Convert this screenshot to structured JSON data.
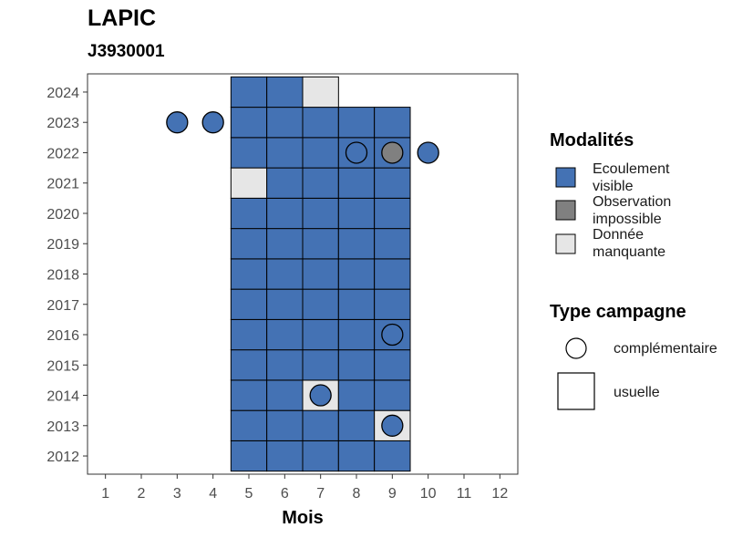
{
  "chart_data": {
    "type": "heatmap",
    "title": "LAPIC",
    "subtitle": "J3930001",
    "xlabel": "Mois",
    "ylabel": "",
    "x_ticks": [
      1,
      2,
      3,
      4,
      5,
      6,
      7,
      8,
      9,
      10,
      11,
      12
    ],
    "y_ticks": [
      2012,
      2013,
      2014,
      2015,
      2016,
      2017,
      2018,
      2019,
      2020,
      2021,
      2022,
      2023,
      2024
    ],
    "xlim": [
      0.5,
      12.5
    ],
    "ylim": [
      2011.4,
      2024.6
    ],
    "colors": {
      "Ecoulement visible": "#4472b4",
      "Observation impossible": "#808080",
      "Donnée manquante": "#e6e6e6"
    },
    "usual_campaigns": [
      {
        "year": 2012,
        "month": 5,
        "status": "Ecoulement visible"
      },
      {
        "year": 2012,
        "month": 6,
        "status": "Ecoulement visible"
      },
      {
        "year": 2012,
        "month": 7,
        "status": "Ecoulement visible"
      },
      {
        "year": 2012,
        "month": 8,
        "status": "Ecoulement visible"
      },
      {
        "year": 2012,
        "month": 9,
        "status": "Ecoulement visible"
      },
      {
        "year": 2013,
        "month": 5,
        "status": "Ecoulement visible"
      },
      {
        "year": 2013,
        "month": 6,
        "status": "Ecoulement visible"
      },
      {
        "year": 2013,
        "month": 7,
        "status": "Ecoulement visible"
      },
      {
        "year": 2013,
        "month": 8,
        "status": "Ecoulement visible"
      },
      {
        "year": 2013,
        "month": 9,
        "status": "Donnée manquante"
      },
      {
        "year": 2014,
        "month": 5,
        "status": "Ecoulement visible"
      },
      {
        "year": 2014,
        "month": 6,
        "status": "Ecoulement visible"
      },
      {
        "year": 2014,
        "month": 7,
        "status": "Donnée manquante"
      },
      {
        "year": 2014,
        "month": 8,
        "status": "Ecoulement visible"
      },
      {
        "year": 2014,
        "month": 9,
        "status": "Ecoulement visible"
      },
      {
        "year": 2015,
        "month": 5,
        "status": "Ecoulement visible"
      },
      {
        "year": 2015,
        "month": 6,
        "status": "Ecoulement visible"
      },
      {
        "year": 2015,
        "month": 7,
        "status": "Ecoulement visible"
      },
      {
        "year": 2015,
        "month": 8,
        "status": "Ecoulement visible"
      },
      {
        "year": 2015,
        "month": 9,
        "status": "Ecoulement visible"
      },
      {
        "year": 2016,
        "month": 5,
        "status": "Ecoulement visible"
      },
      {
        "year": 2016,
        "month": 6,
        "status": "Ecoulement visible"
      },
      {
        "year": 2016,
        "month": 7,
        "status": "Ecoulement visible"
      },
      {
        "year": 2016,
        "month": 8,
        "status": "Ecoulement visible"
      },
      {
        "year": 2016,
        "month": 9,
        "status": "Ecoulement visible"
      },
      {
        "year": 2017,
        "month": 5,
        "status": "Ecoulement visible"
      },
      {
        "year": 2017,
        "month": 6,
        "status": "Ecoulement visible"
      },
      {
        "year": 2017,
        "month": 7,
        "status": "Ecoulement visible"
      },
      {
        "year": 2017,
        "month": 8,
        "status": "Ecoulement visible"
      },
      {
        "year": 2017,
        "month": 9,
        "status": "Ecoulement visible"
      },
      {
        "year": 2018,
        "month": 5,
        "status": "Ecoulement visible"
      },
      {
        "year": 2018,
        "month": 6,
        "status": "Ecoulement visible"
      },
      {
        "year": 2018,
        "month": 7,
        "status": "Ecoulement visible"
      },
      {
        "year": 2018,
        "month": 8,
        "status": "Ecoulement visible"
      },
      {
        "year": 2018,
        "month": 9,
        "status": "Ecoulement visible"
      },
      {
        "year": 2019,
        "month": 5,
        "status": "Ecoulement visible"
      },
      {
        "year": 2019,
        "month": 6,
        "status": "Ecoulement visible"
      },
      {
        "year": 2019,
        "month": 7,
        "status": "Ecoulement visible"
      },
      {
        "year": 2019,
        "month": 8,
        "status": "Ecoulement visible"
      },
      {
        "year": 2019,
        "month": 9,
        "status": "Ecoulement visible"
      },
      {
        "year": 2020,
        "month": 5,
        "status": "Ecoulement visible"
      },
      {
        "year": 2020,
        "month": 6,
        "status": "Ecoulement visible"
      },
      {
        "year": 2020,
        "month": 7,
        "status": "Ecoulement visible"
      },
      {
        "year": 2020,
        "month": 8,
        "status": "Ecoulement visible"
      },
      {
        "year": 2020,
        "month": 9,
        "status": "Ecoulement visible"
      },
      {
        "year": 2021,
        "month": 5,
        "status": "Donnée manquante"
      },
      {
        "year": 2021,
        "month": 6,
        "status": "Ecoulement visible"
      },
      {
        "year": 2021,
        "month": 7,
        "status": "Ecoulement visible"
      },
      {
        "year": 2021,
        "month": 8,
        "status": "Ecoulement visible"
      },
      {
        "year": 2021,
        "month": 9,
        "status": "Ecoulement visible"
      },
      {
        "year": 2022,
        "month": 5,
        "status": "Ecoulement visible"
      },
      {
        "year": 2022,
        "month": 6,
        "status": "Ecoulement visible"
      },
      {
        "year": 2022,
        "month": 7,
        "status": "Ecoulement visible"
      },
      {
        "year": 2022,
        "month": 8,
        "status": "Ecoulement visible"
      },
      {
        "year": 2022,
        "month": 9,
        "status": "Ecoulement visible"
      },
      {
        "year": 2023,
        "month": 5,
        "status": "Ecoulement visible"
      },
      {
        "year": 2023,
        "month": 6,
        "status": "Ecoulement visible"
      },
      {
        "year": 2023,
        "month": 7,
        "status": "Ecoulement visible"
      },
      {
        "year": 2023,
        "month": 8,
        "status": "Ecoulement visible"
      },
      {
        "year": 2023,
        "month": 9,
        "status": "Ecoulement visible"
      },
      {
        "year": 2024,
        "month": 5,
        "status": "Ecoulement visible"
      },
      {
        "year": 2024,
        "month": 6,
        "status": "Ecoulement visible"
      },
      {
        "year": 2024,
        "month": 7,
        "status": "Donnée manquante"
      }
    ],
    "complementary_campaigns": [
      {
        "year": 2023,
        "month": 3,
        "status": "Ecoulement visible"
      },
      {
        "year": 2023,
        "month": 4,
        "status": "Ecoulement visible"
      },
      {
        "year": 2022,
        "month": 8,
        "status": "Ecoulement visible"
      },
      {
        "year": 2022,
        "month": 9,
        "status": "Observation impossible"
      },
      {
        "year": 2022,
        "month": 10,
        "status": "Ecoulement visible"
      },
      {
        "year": 2016,
        "month": 9,
        "status": "Ecoulement visible"
      },
      {
        "year": 2014,
        "month": 7,
        "status": "Ecoulement visible"
      },
      {
        "year": 2013,
        "month": 9,
        "status": "Ecoulement visible"
      }
    ]
  },
  "legend": {
    "modalites_title": "Modalités",
    "modalites": [
      {
        "line1": "Ecoulement",
        "line2": "visible",
        "color": "#4472b4"
      },
      {
        "line1": "Observation",
        "line2": "impossible",
        "color": "#808080"
      },
      {
        "line1": "Donnée",
        "line2": "manquante",
        "color": "#e6e6e6"
      }
    ],
    "type_title": "Type campagne",
    "types": [
      {
        "label": "complémentaire",
        "shape": "circle"
      },
      {
        "label": "usuelle",
        "shape": "square"
      }
    ]
  }
}
